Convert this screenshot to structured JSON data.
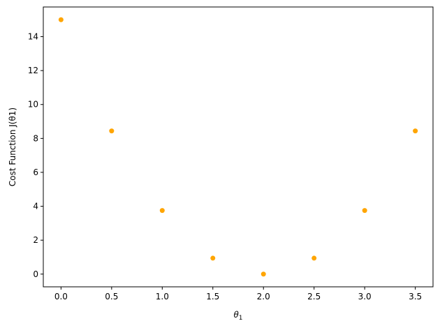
{
  "chart_data": {
    "type": "scatter",
    "x": [
      0.0,
      0.5,
      1.0,
      1.5,
      2.0,
      2.5,
      3.0,
      3.5
    ],
    "y": [
      15.0,
      8.44,
      3.75,
      0.94,
      0.0,
      0.94,
      3.75,
      8.44
    ],
    "point_color": "#ffa500",
    "xlim": [
      -0.175,
      3.675
    ],
    "ylim": [
      -0.75,
      15.75
    ],
    "x_ticks": [
      0.0,
      0.5,
      1.0,
      1.5,
      2.0,
      2.5,
      3.0,
      3.5
    ],
    "x_tick_labels": [
      "0.0",
      "0.5",
      "1.0",
      "1.5",
      "2.0",
      "2.5",
      "3.0",
      "3.5"
    ],
    "y_ticks": [
      0,
      2,
      4,
      6,
      8,
      10,
      12,
      14
    ],
    "y_tick_labels": [
      "0",
      "2",
      "4",
      "6",
      "8",
      "10",
      "12",
      "14"
    ],
    "xlabel": "θ1",
    "ylabel": "Cost Function J(θ1)",
    "grid": false,
    "title": ""
  }
}
